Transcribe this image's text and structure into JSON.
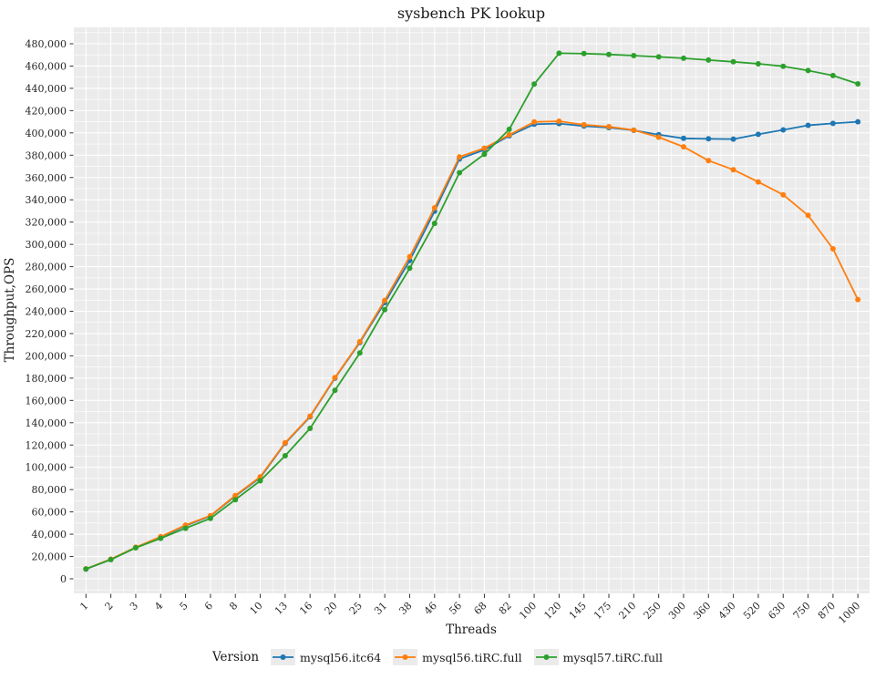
{
  "chart_data": {
    "type": "line",
    "title": "sysbench PK lookup",
    "xlabel": "Threads",
    "ylabel": "Throughput,OPS",
    "x_scale": "categorical",
    "categories": [
      1,
      2,
      3,
      4,
      5,
      6,
      8,
      10,
      13,
      16,
      20,
      25,
      31,
      38,
      46,
      56,
      68,
      82,
      100,
      120,
      145,
      175,
      210,
      250,
      300,
      360,
      430,
      520,
      630,
      750,
      870,
      1000
    ],
    "y_axis": {
      "min": 0,
      "max": 480000,
      "major_step": 20000,
      "minor_step": 10000,
      "tick_format": "comma"
    },
    "grid": {
      "panel_bg": "#ebebeb",
      "major_color": "#ffffff",
      "minor_color": "#ffffff",
      "show_minor": true
    },
    "legend": {
      "title": "Version",
      "position": "bottom",
      "key_bg": "#ebebeb"
    },
    "series": [
      {
        "name": "mysql56.itc64",
        "color": "#1f77b4",
        "values": [
          8700,
          17300,
          28000,
          37300,
          47600,
          56300,
          74200,
          90800,
          121500,
          145300,
          180000,
          212000,
          247800,
          285500,
          329700,
          376600,
          384800,
          397400,
          407800,
          408400,
          406200,
          404800,
          402300,
          398500,
          395100,
          394700,
          394500,
          398700,
          402700,
          406800,
          408500,
          410000
        ]
      },
      {
        "name": "mysql56.tiRC.full",
        "color": "#ff7f0e",
        "values": [
          8900,
          17600,
          28300,
          37800,
          48200,
          56700,
          74700,
          91500,
          122100,
          145900,
          180500,
          212700,
          249700,
          289000,
          332800,
          378500,
          386300,
          398300,
          409800,
          410500,
          407300,
          405600,
          402600,
          396200,
          387500,
          375200,
          367000,
          356000,
          344500,
          326000,
          296000,
          250500
        ]
      },
      {
        "name": "mysql57.tiRC.full",
        "color": "#2ca02c",
        "values": [
          8800,
          17200,
          27800,
          36300,
          45300,
          54100,
          71000,
          87900,
          110400,
          134900,
          169000,
          202600,
          241400,
          278600,
          318800,
          364300,
          380900,
          403200,
          443800,
          471500,
          471200,
          470400,
          469400,
          468200,
          467000,
          465400,
          463800,
          462000,
          459800,
          456000,
          451500,
          444000
        ]
      }
    ]
  }
}
